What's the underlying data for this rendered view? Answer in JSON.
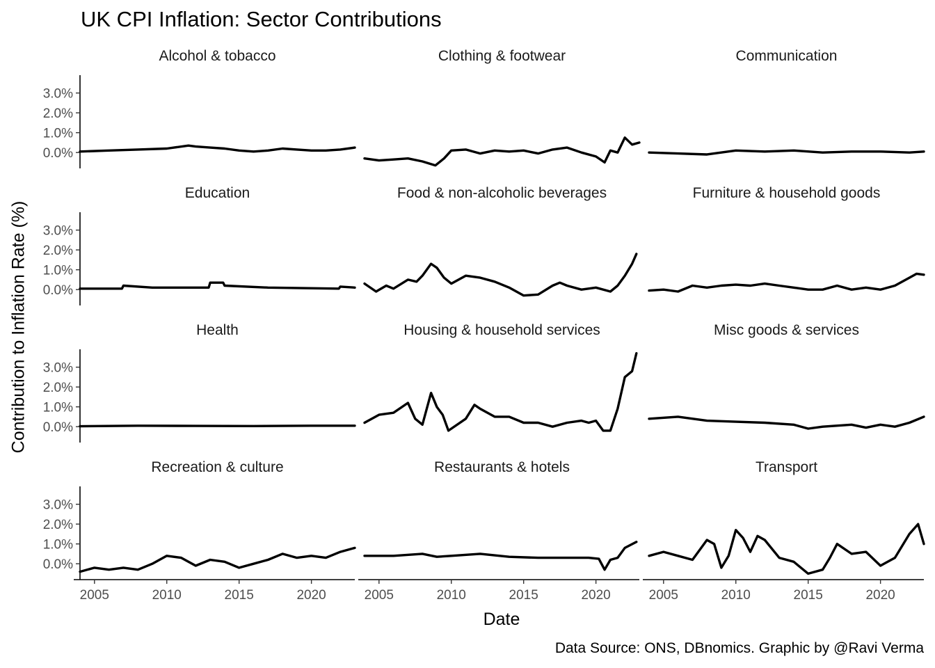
{
  "chart_data": {
    "type": "line",
    "title": "UK CPI Inflation: Sector Contributions",
    "xlabel": "Date",
    "ylabel": "Contribution to Inflation Rate (%)",
    "caption": "Data Source: ONS, DBnomics. Graphic by @Ravi Verma",
    "xlim": [
      2004,
      2023
    ],
    "ylim": [
      -0.8,
      3.9
    ],
    "x_ticks": [
      2005,
      2010,
      2015,
      2020
    ],
    "x_tick_labels": [
      "2005",
      "2010",
      "2015",
      "2020"
    ],
    "y_ticks": [
      0,
      1,
      2,
      3
    ],
    "y_tick_labels": [
      "0.0%",
      "1.0%",
      "2.0%",
      "3.0%"
    ],
    "line_color": "#000000",
    "background": "#ffffff",
    "panels": [
      {
        "name": "Alcohol & tobacco",
        "x": [
          2004,
          2006,
          2008,
          2010,
          2011.5,
          2012,
          2013,
          2014,
          2015,
          2016,
          2017,
          2018,
          2019,
          2020,
          2021,
          2022,
          2023
        ],
        "y": [
          0.05,
          0.1,
          0.15,
          0.2,
          0.35,
          0.3,
          0.25,
          0.2,
          0.1,
          0.05,
          0.1,
          0.2,
          0.15,
          0.1,
          0.1,
          0.15,
          0.25
        ]
      },
      {
        "name": "Clothing & footwear",
        "x": [
          2004,
          2005,
          2006,
          2007,
          2008,
          2008.9,
          2009.5,
          2010,
          2011,
          2012,
          2013,
          2014,
          2015,
          2016,
          2017,
          2018,
          2019,
          2020,
          2020.6,
          2021,
          2021.5,
          2022,
          2022.5,
          2023
        ],
        "y": [
          -0.3,
          -0.4,
          -0.35,
          -0.3,
          -0.45,
          -0.65,
          -0.3,
          0.1,
          0.15,
          -0.05,
          0.1,
          0.05,
          0.1,
          -0.05,
          0.15,
          0.25,
          0.0,
          -0.2,
          -0.5,
          0.1,
          0.0,
          0.75,
          0.4,
          0.5
        ]
      },
      {
        "name": "Communication",
        "x": [
          2004,
          2006,
          2008,
          2010,
          2012,
          2014,
          2016,
          2018,
          2020,
          2022,
          2023
        ],
        "y": [
          0.0,
          -0.05,
          -0.1,
          0.1,
          0.05,
          0.1,
          0.0,
          0.05,
          0.05,
          0.0,
          0.05
        ]
      },
      {
        "name": "Education",
        "x": [
          2004,
          2006.9,
          2007,
          2009,
          2012.9,
          2013,
          2013.9,
          2014,
          2017,
          2021.9,
          2022,
          2023
        ],
        "y": [
          0.05,
          0.05,
          0.2,
          0.1,
          0.1,
          0.35,
          0.35,
          0.2,
          0.1,
          0.05,
          0.15,
          0.1
        ]
      },
      {
        "name": "Food & non-alcoholic beverages",
        "x": [
          2004,
          2004.8,
          2005.5,
          2006,
          2007,
          2007.6,
          2008,
          2008.6,
          2009,
          2009.5,
          2010,
          2011,
          2012,
          2013,
          2014,
          2015,
          2016,
          2017,
          2017.5,
          2018,
          2019,
          2020,
          2021,
          2021.5,
          2022,
          2022.5,
          2022.8
        ],
        "y": [
          0.3,
          -0.1,
          0.2,
          0.05,
          0.5,
          0.4,
          0.7,
          1.3,
          1.1,
          0.6,
          0.3,
          0.7,
          0.6,
          0.4,
          0.1,
          -0.3,
          -0.25,
          0.2,
          0.35,
          0.2,
          0.0,
          0.1,
          -0.1,
          0.2,
          0.7,
          1.3,
          1.8
        ]
      },
      {
        "name": "Furniture & household goods",
        "x": [
          2004,
          2005,
          2006,
          2007,
          2008,
          2009,
          2010,
          2011,
          2012,
          2013,
          2014,
          2015,
          2016,
          2017,
          2018,
          2019,
          2020,
          2021,
          2022,
          2022.5,
          2023
        ],
        "y": [
          -0.05,
          0.0,
          -0.1,
          0.2,
          0.1,
          0.2,
          0.25,
          0.2,
          0.3,
          0.2,
          0.1,
          0.0,
          0.0,
          0.2,
          0.0,
          0.1,
          0.0,
          0.2,
          0.6,
          0.8,
          0.75
        ]
      },
      {
        "name": "Health",
        "x": [
          2004,
          2008,
          2012,
          2016,
          2020,
          2023
        ],
        "y": [
          0.02,
          0.05,
          0.04,
          0.03,
          0.05,
          0.05
        ]
      },
      {
        "name": "Housing & household services",
        "x": [
          2004,
          2005,
          2006,
          2007,
          2007.5,
          2008,
          2008.6,
          2009,
          2009.4,
          2009.8,
          2011,
          2011.6,
          2012,
          2013,
          2014,
          2015,
          2016,
          2017,
          2018,
          2019,
          2019.5,
          2020,
          2020.5,
          2021,
          2021.5,
          2022,
          2022.5,
          2022.8
        ],
        "y": [
          0.2,
          0.6,
          0.7,
          1.2,
          0.4,
          0.1,
          1.7,
          1.0,
          0.6,
          -0.2,
          0.4,
          1.1,
          0.9,
          0.5,
          0.5,
          0.2,
          0.2,
          0.0,
          0.2,
          0.3,
          0.2,
          0.3,
          -0.2,
          -0.2,
          0.9,
          2.5,
          2.8,
          3.7
        ]
      },
      {
        "name": "Misc goods & services",
        "x": [
          2004,
          2006,
          2008,
          2010,
          2012,
          2014,
          2015,
          2016,
          2018,
          2019,
          2020,
          2021,
          2022,
          2023
        ],
        "y": [
          0.4,
          0.5,
          0.3,
          0.25,
          0.2,
          0.1,
          -0.1,
          0.0,
          0.1,
          -0.05,
          0.1,
          0.0,
          0.2,
          0.5
        ]
      },
      {
        "name": "Recreation & culture",
        "x": [
          2004,
          2005,
          2006,
          2007,
          2008,
          2009,
          2010,
          2011,
          2012,
          2013,
          2014,
          2015,
          2016,
          2017,
          2018,
          2019,
          2020,
          2021,
          2022,
          2023
        ],
        "y": [
          -0.4,
          -0.2,
          -0.3,
          -0.2,
          -0.3,
          0.0,
          0.4,
          0.3,
          -0.1,
          0.2,
          0.1,
          -0.2,
          0.0,
          0.2,
          0.5,
          0.3,
          0.4,
          0.3,
          0.6,
          0.8
        ]
      },
      {
        "name": "Restaurants & hotels",
        "x": [
          2004,
          2006,
          2008,
          2009,
          2010,
          2012,
          2014,
          2016,
          2018,
          2019.5,
          2020.2,
          2020.6,
          2021,
          2021.5,
          2022,
          2022.8
        ],
        "y": [
          0.4,
          0.4,
          0.5,
          0.35,
          0.4,
          0.5,
          0.35,
          0.3,
          0.3,
          0.3,
          0.25,
          -0.3,
          0.2,
          0.3,
          0.8,
          1.1
        ]
      },
      {
        "name": "Transport",
        "x": [
          2004,
          2005,
          2006,
          2007,
          2008,
          2008.5,
          2009,
          2009.5,
          2010,
          2010.5,
          2011,
          2011.5,
          2012,
          2013,
          2014,
          2015,
          2016,
          2016.5,
          2017,
          2018,
          2019,
          2020,
          2021,
          2022,
          2022.6,
          2023
        ],
        "y": [
          0.4,
          0.6,
          0.4,
          0.2,
          1.2,
          1.0,
          -0.2,
          0.4,
          1.7,
          1.3,
          0.6,
          1.4,
          1.2,
          0.3,
          0.1,
          -0.5,
          -0.3,
          0.3,
          1.0,
          0.5,
          0.6,
          -0.1,
          0.3,
          1.5,
          2.0,
          1.0
        ]
      }
    ]
  }
}
